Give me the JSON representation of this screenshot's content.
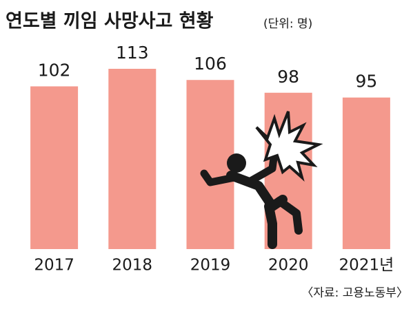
{
  "chart_data": {
    "type": "bar",
    "title": "연도별 끼임 사망사고 현황",
    "subtitle": "(단위: 명)",
    "categories": [
      "2017",
      "2018",
      "2019",
      "2020",
      "2021년"
    ],
    "values": [
      102,
      113,
      106,
      98,
      95
    ],
    "color": "#f4998d",
    "source": "〈자료: 고용노동부〉"
  }
}
